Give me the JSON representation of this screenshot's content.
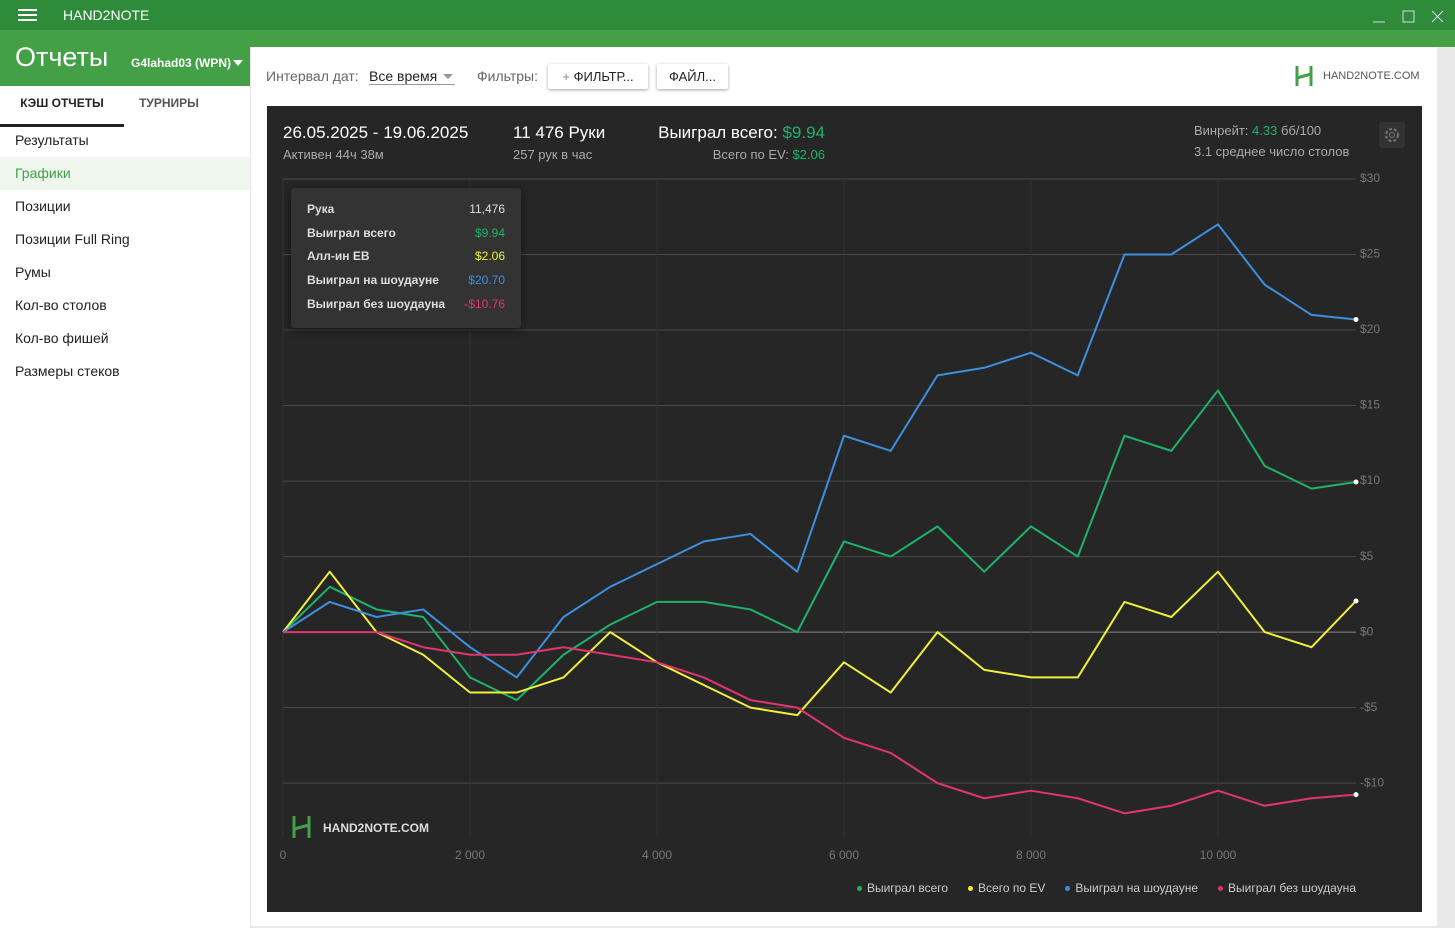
{
  "app": {
    "title": "HAND2NOTE",
    "section": "Отчеты",
    "player": "G4lahad03 (WPN)"
  },
  "sidebar": {
    "tabs": [
      "КЭШ ОТЧЕТЫ",
      "ТУРНИРЫ"
    ],
    "items": [
      "Результаты",
      "Графики",
      "Позиции",
      "Позиции Full Ring",
      "Румы",
      "Кол-во столов",
      "Кол-во фишей",
      "Размеры стеков"
    ]
  },
  "toolbar": {
    "date_label": "Интервал дат:",
    "date_value": "Все время",
    "filters_label": "Фильтры:",
    "filter_button": "ФИЛЬТР...",
    "file_button": "ФАЙЛ...",
    "logo": "HAND2NOTE.COM"
  },
  "summary": {
    "dates": "26.05.2025 - 19.06.2025",
    "active": "Активен 44ч 38м",
    "hands": "11 476 Руки",
    "rate": "257 рук в час",
    "won_label": "Выиграл всего:",
    "won_value": "$9.94",
    "ev_label": "Всего по EV:",
    "ev_value": "$2.06",
    "winrate_label": "Винрейт:",
    "winrate_value": "4.33",
    "winrate_unit": "бб/100",
    "tables": "3.1 среднее число столов"
  },
  "tooltip": {
    "rows": [
      {
        "label": "Рука",
        "value": "11,476"
      },
      {
        "label": "Выиграл всего",
        "value": "$9.94"
      },
      {
        "label": "Алл-ин ЕВ",
        "value": "$2.06"
      },
      {
        "label": "Выиграл на шоудауне",
        "value": "$20.70"
      },
      {
        "label": "Выиграл без шоудауна",
        "value": "-$10.76"
      }
    ]
  },
  "watermark": "HAND2NOTE.COM",
  "chart_data": {
    "type": "line",
    "x": [
      0,
      500,
      1000,
      1500,
      2000,
      2500,
      3000,
      3500,
      4000,
      4500,
      5000,
      5500,
      6000,
      6500,
      7000,
      7500,
      8000,
      8500,
      9000,
      9500,
      10000,
      10500,
      11000,
      11476
    ],
    "series": [
      {
        "name": "Выиграл всего",
        "color": "#1db36b",
        "values": [
          0,
          3,
          1.5,
          1,
          -3,
          -4.5,
          -1.5,
          0.5,
          2,
          2,
          1.5,
          0,
          6,
          5,
          7,
          4,
          7,
          5,
          13,
          12,
          16,
          11,
          9.5,
          9.94
        ]
      },
      {
        "name": "Всего по EV",
        "color": "#f0f03a",
        "values": [
          0,
          4,
          0,
          -1.5,
          -4,
          -4,
          -3,
          0,
          -2,
          -3.5,
          -5,
          -5.5,
          -2,
          -4,
          0,
          -2.5,
          -3,
          -3,
          2,
          1,
          4,
          0,
          -1,
          2.06
        ]
      },
      {
        "name": "Выиграл на шоудауне",
        "color": "#3d8fe0",
        "values": [
          0,
          2,
          1,
          1.5,
          -1,
          -3,
          1,
          3,
          4.5,
          6,
          6.5,
          4,
          13,
          12,
          17,
          17.5,
          18.5,
          17,
          25,
          25,
          27,
          23,
          21,
          20.7
        ]
      },
      {
        "name": "Выиграл без шоудауна",
        "color": "#e0356e",
        "values": [
          0,
          0,
          0,
          -1,
          -1.5,
          -1.5,
          -1,
          -1.5,
          -2,
          -3,
          -4.5,
          -5,
          -7,
          -8,
          -10,
          -11,
          -10.5,
          -11,
          -12,
          -11.5,
          -10.5,
          -11.5,
          -11,
          -10.76
        ]
      }
    ],
    "xlim": [
      0,
      11476
    ],
    "ylim": [
      -13.5,
      30
    ],
    "xticks": [
      0,
      {
        "value": 2000,
        "label": "2 000"
      },
      {
        "value": 4000,
        "label": "4 000"
      },
      {
        "value": 6000,
        "label": "6 000"
      },
      {
        "value": 8000,
        "label": "8 000"
      },
      {
        "value": 10000,
        "label": "10 000"
      }
    ],
    "yticks": [
      {
        "value": -10,
        "label": "-$10"
      },
      {
        "value": -5,
        "label": "-$5"
      },
      {
        "value": 0,
        "label": "$0"
      },
      {
        "value": 5,
        "label": "$5"
      },
      {
        "value": 10,
        "label": "$10"
      },
      {
        "value": 15,
        "label": "$15"
      },
      {
        "value": 20,
        "label": "$20"
      },
      {
        "value": 25,
        "label": "$25"
      },
      {
        "value": 30,
        "label": "$30"
      }
    ],
    "grid": true
  }
}
